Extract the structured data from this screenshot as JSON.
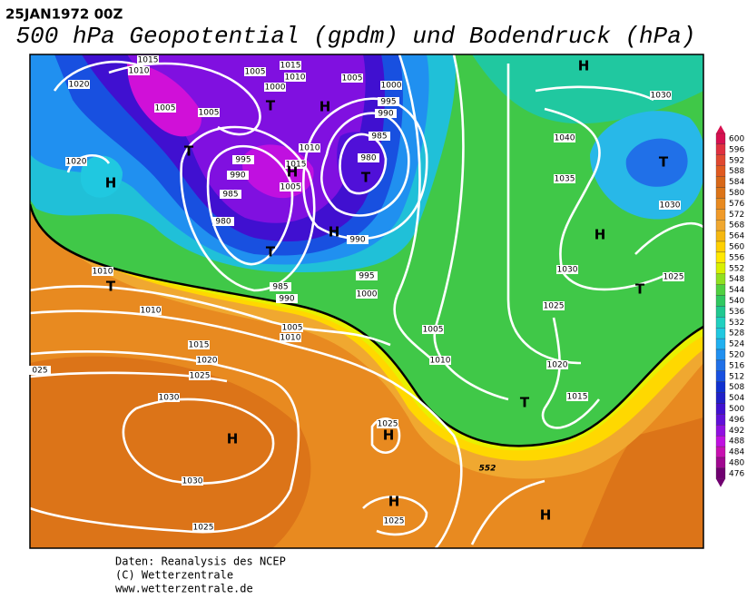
{
  "header": {
    "date": "25JAN1972 00Z",
    "title": "500 hPa Geopotential (gpdm) und Bodendruck (hPa)"
  },
  "legend": {
    "levels": [
      "600",
      "596",
      "592",
      "588",
      "584",
      "580",
      "576",
      "572",
      "568",
      "564",
      "560",
      "556",
      "552",
      "548",
      "544",
      "540",
      "536",
      "532",
      "528",
      "524",
      "520",
      "516",
      "512",
      "508",
      "504",
      "500",
      "496",
      "492",
      "488",
      "484",
      "480",
      "476"
    ]
  },
  "map": {
    "isobar_labels": [
      "1015",
      "1010",
      "1020",
      "1005",
      "1005",
      "1005",
      "1015",
      "1010",
      "1000",
      "1005",
      "1000",
      "995",
      "990",
      "985",
      "980",
      "1010",
      "1015",
      "995",
      "990",
      "985",
      "1005",
      "980",
      "990",
      "995",
      "985",
      "990",
      "1000",
      "1010",
      "1010",
      "1005",
      "1010",
      "1015",
      "1020",
      "1025",
      "025",
      "1030",
      "1030",
      "1025",
      "1025",
      "1025",
      "1005",
      "1010",
      "1020",
      "1040",
      "1035",
      "1030",
      "1030",
      "1030",
      "1025",
      "1025",
      "1020",
      "1015"
    ],
    "contour_label": "552",
    "centers": [
      "H",
      "T",
      "H",
      "T",
      "H",
      "T",
      "H",
      "T",
      "H",
      "T",
      "H",
      "T",
      "T",
      "T",
      "H",
      "H",
      "H",
      "H"
    ]
  },
  "footer": {
    "lines": [
      "Daten: Reanalysis des NCEP",
      "(C) Wetterzentrale",
      "www.wetterzentrale.de"
    ]
  }
}
